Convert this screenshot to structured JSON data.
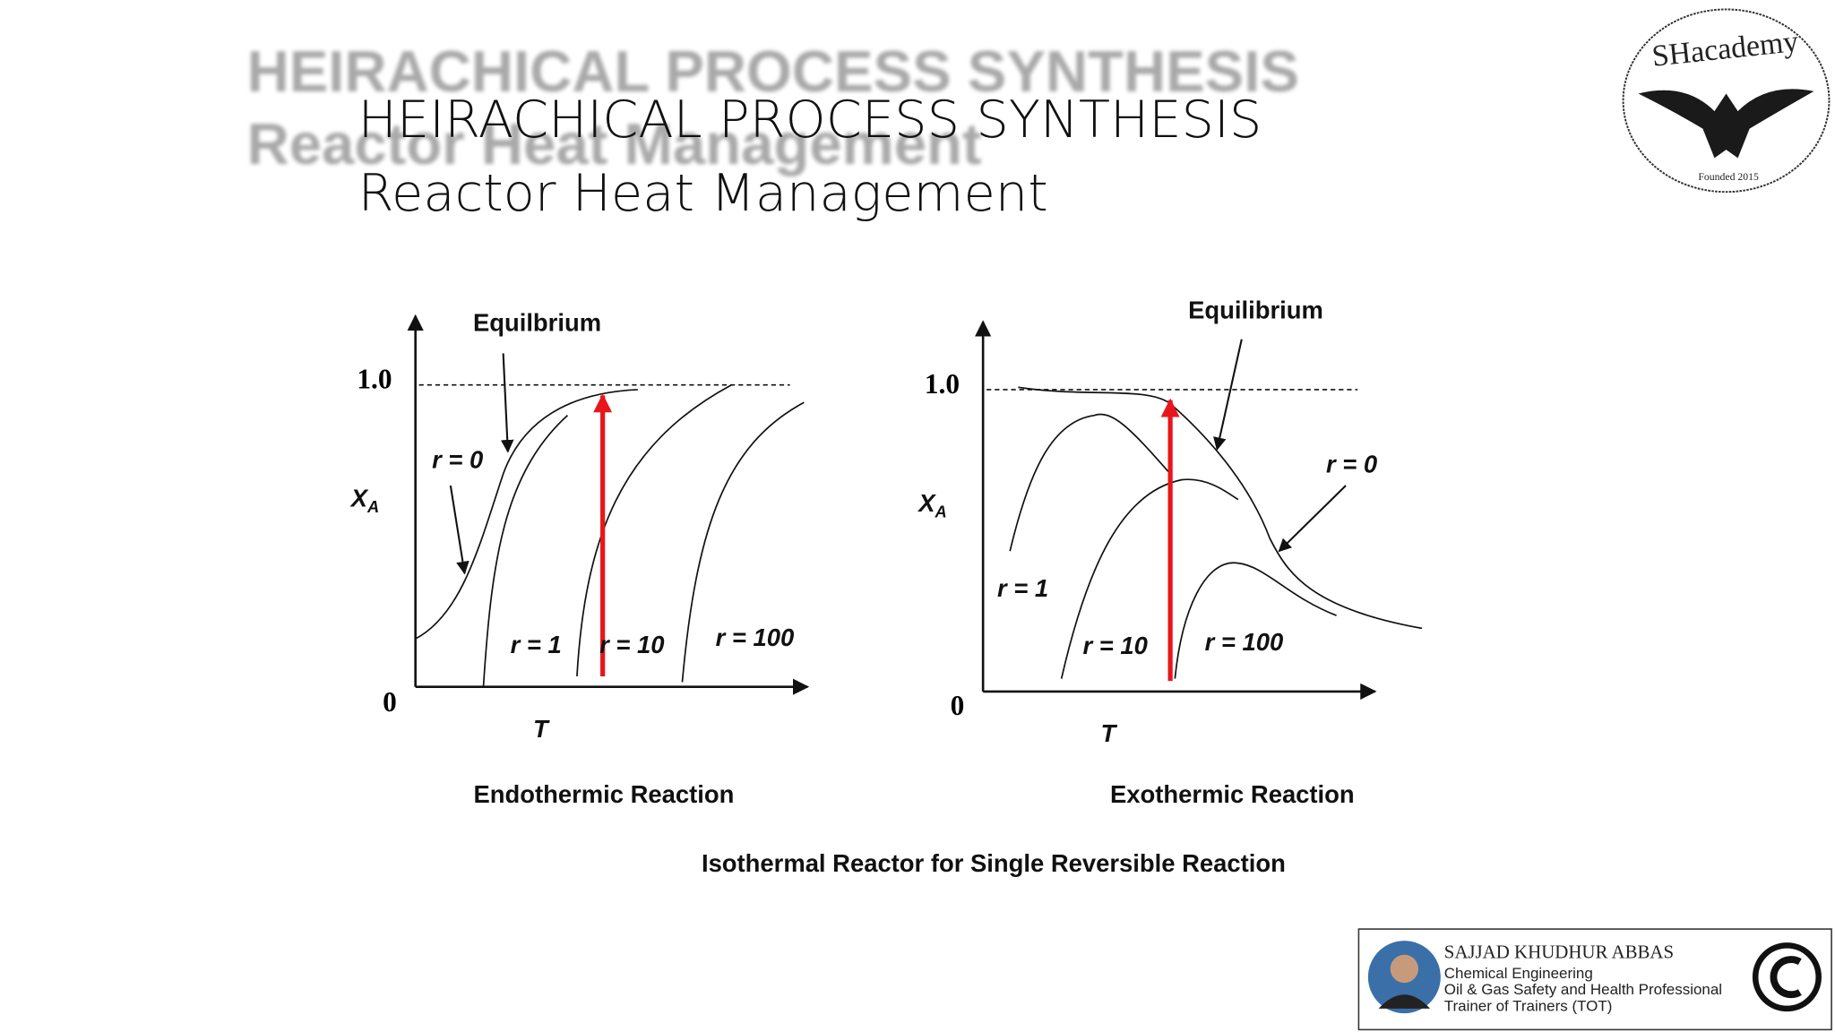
{
  "header": {
    "ghost_title": [
      "HEIRACHICAL PROCESS SYNTHESIS",
      "Reactor Heat Management"
    ],
    "title": [
      "HEIRACHICAL PROCESS SYNTHESIS",
      "Reactor Heat Management"
    ]
  },
  "logo": {
    "name": "SHacademy",
    "founded": "Founded 2015"
  },
  "diagrams": [
    {
      "caption": "Endothermic Reaction",
      "y_top": "1.0",
      "origin": "0",
      "y_axis": "X",
      "y_axis_sub": "A",
      "x_axis": "T",
      "equilibrium": "Equilbrium",
      "curves": [
        "r = 0",
        "r = 1",
        "r = 10",
        "r = 100"
      ]
    },
    {
      "caption": "Exothermic Reaction",
      "y_top": "1.0",
      "origin": "0",
      "y_axis": "X",
      "y_axis_sub": "A",
      "x_axis": "T",
      "equilibrium": "Equilibrium",
      "curves": [
        "r = 0",
        "r = 1",
        "r = 10",
        "r = 100"
      ]
    }
  ],
  "figure_caption": "Isothermal Reactor for Single Reversible Reaction",
  "footer": {
    "name": "SAJJAD KHUDHUR ABBAS",
    "lines": [
      "Chemical Engineering",
      "Oil & Gas Safety and Health Professional",
      "Trainer of Trainers (TOT)"
    ]
  }
}
